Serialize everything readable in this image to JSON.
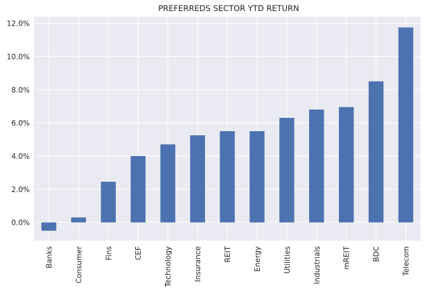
{
  "chart_data": {
    "type": "bar",
    "title": "PREFERREDS SECTOR YTD RETURN",
    "xlabel": "",
    "ylabel": "",
    "categories": [
      "Banks",
      "Consumer",
      "Fins",
      "CEF",
      "Technology",
      "Insurance",
      "REIT",
      "Energy",
      "Utilities",
      "Industrials",
      "mREIT",
      "BDC",
      "Telecom"
    ],
    "values": [
      -0.5,
      0.3,
      2.45,
      4.0,
      4.7,
      5.25,
      5.5,
      5.5,
      6.3,
      6.8,
      6.95,
      8.5,
      11.75
    ],
    "ylim": [
      -1.1,
      12.4
    ],
    "yticks": [
      0,
      2,
      4,
      6,
      8,
      10,
      12
    ],
    "ytick_labels": [
      "0.0%",
      "2.0%",
      "4.0%",
      "6.0%",
      "8.0%",
      "10.0%",
      "12.0%"
    ],
    "grid": true,
    "legend": "none",
    "colors": {
      "bar": "#4c72b0",
      "background": "#eaeaf2",
      "grid": "#ffffff",
      "text": "#262626"
    }
  }
}
